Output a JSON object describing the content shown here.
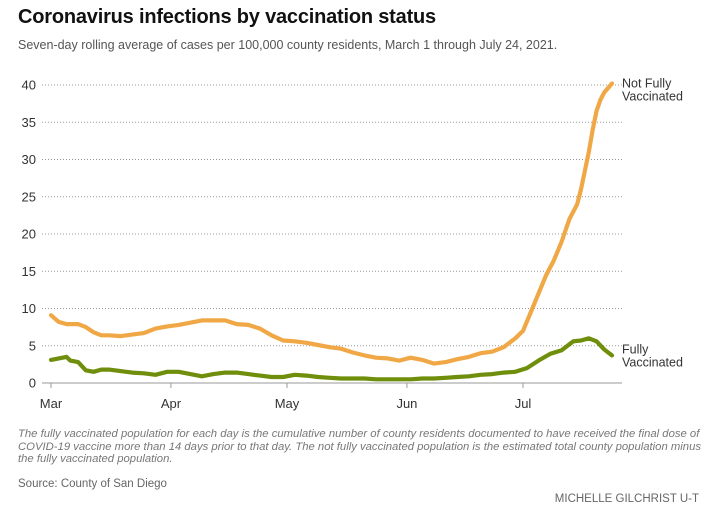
{
  "chart_data": {
    "type": "line",
    "title": "Coronavirus infections by vaccination status",
    "subtitle": "Seven-day rolling average of cases per 100,000 county residents, March 1 through July 24, 2021.",
    "xlabel": "",
    "ylabel": "",
    "ylim": [
      0,
      40
    ],
    "yticks": [
      0,
      5,
      10,
      15,
      20,
      25,
      30,
      35,
      40
    ],
    "xdomain_days": [
      0,
      145
    ],
    "xticks": [
      {
        "label": "Mar",
        "day": 0
      },
      {
        "label": "Apr",
        "day": 31
      },
      {
        "label": "May",
        "day": 61
      },
      {
        "label": "Jun",
        "day": 92
      },
      {
        "label": "Jul",
        "day": 122
      }
    ],
    "grid": true,
    "x_unit": "days since March 1, 2021",
    "series": [
      {
        "name": "Not Fully Vaccinated",
        "label_lines": [
          "Not Fully",
          "Vaccinated"
        ],
        "color": "#f0a847",
        "days": [
          0,
          2,
          4,
          7,
          9,
          11,
          13,
          15,
          18,
          21,
          24,
          27,
          30,
          33,
          36,
          39,
          42,
          45,
          48,
          51,
          54,
          57,
          60,
          63,
          66,
          69,
          72,
          75,
          78,
          81,
          84,
          87,
          90,
          93,
          96,
          99,
          102,
          105,
          108,
          111,
          114,
          117,
          120,
          122,
          124,
          126,
          128,
          130,
          132,
          134,
          136,
          137,
          139,
          140,
          141,
          142,
          143,
          145
        ],
        "values": [
          9.1,
          8.2,
          7.9,
          7.9,
          7.5,
          6.8,
          6.4,
          6.4,
          6.3,
          6.5,
          6.7,
          7.3,
          7.6,
          7.8,
          8.1,
          8.4,
          8.4,
          8.4,
          7.9,
          7.8,
          7.3,
          6.4,
          5.7,
          5.6,
          5.4,
          5.1,
          4.8,
          4.6,
          4.1,
          3.7,
          3.4,
          3.3,
          3.0,
          3.4,
          3.1,
          2.6,
          2.8,
          3.2,
          3.5,
          4.0,
          4.2,
          4.8,
          6.0,
          7.0,
          9.5,
          12.0,
          14.5,
          16.5,
          19.0,
          22.0,
          24.0,
          26.0,
          31.0,
          34.0,
          36.5,
          38.0,
          39.0,
          40.2
        ]
      },
      {
        "name": "Fully Vaccinated",
        "label_lines": [
          "Fully",
          "Vaccinated"
        ],
        "color": "#6f8e0b",
        "days": [
          0,
          2,
          4,
          5,
          7,
          9,
          11,
          13,
          15,
          18,
          21,
          24,
          27,
          30,
          33,
          36,
          39,
          42,
          45,
          48,
          51,
          54,
          57,
          60,
          63,
          66,
          69,
          72,
          75,
          78,
          81,
          84,
          87,
          90,
          93,
          96,
          99,
          102,
          105,
          108,
          111,
          114,
          117,
          120,
          123,
          126,
          129,
          132,
          135,
          137,
          139,
          141,
          143,
          145
        ],
        "values": [
          3.1,
          3.3,
          3.5,
          3.0,
          2.8,
          1.7,
          1.5,
          1.8,
          1.8,
          1.6,
          1.4,
          1.3,
          1.1,
          1.5,
          1.5,
          1.2,
          0.9,
          1.2,
          1.4,
          1.4,
          1.2,
          1.0,
          0.8,
          0.8,
          1.1,
          1.0,
          0.8,
          0.7,
          0.6,
          0.6,
          0.6,
          0.5,
          0.5,
          0.5,
          0.5,
          0.6,
          0.6,
          0.7,
          0.8,
          0.9,
          1.1,
          1.2,
          1.4,
          1.5,
          2.0,
          3.0,
          3.9,
          4.4,
          5.6,
          5.7,
          6.0,
          5.6,
          4.5,
          3.7
        ]
      }
    ]
  },
  "note": "The fully vaccinated population for each day is the cumulative number of county residents documented to have received the final dose of COVID-19 vaccine more than 14 days prior to that day. The not fully vaccinated population is the estimated total county population minus the fully vaccinated population.",
  "source": "Source: County of San Diego",
  "credit": "MICHELLE GILCHRIST U-T"
}
